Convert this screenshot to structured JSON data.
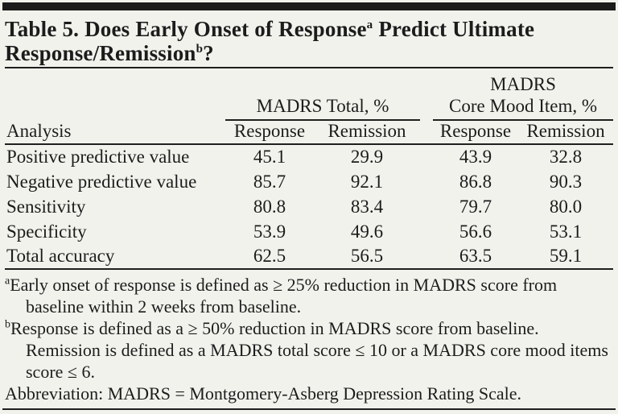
{
  "page": {
    "background_color": "#f2f2ed",
    "text_color": "#1c1c1c",
    "rule_color": "#1f1f1f"
  },
  "title": {
    "line1_pre": "Table 5. Does Early Onset of Response",
    "line1_sup": "a",
    "line1_post": " Predict Ultimate",
    "line2_pre": "Response/Remission",
    "line2_sup": "b",
    "line2_post": "?"
  },
  "table": {
    "row_header": "Analysis",
    "group1": {
      "label": "MADRS Total, %"
    },
    "group2": {
      "top": "MADRS",
      "label": "Core Mood Item, %"
    },
    "sub_headers": [
      "Response",
      "Remission",
      "Response",
      "Remission"
    ],
    "rows": [
      {
        "label": "Positive predictive value",
        "values": [
          "45.1",
          "29.9",
          "43.9",
          "32.8"
        ]
      },
      {
        "label": "Negative predictive value",
        "values": [
          "85.7",
          "92.1",
          "86.8",
          "90.3"
        ]
      },
      {
        "label": "Sensitivity",
        "values": [
          "80.8",
          "83.4",
          "79.7",
          "80.0"
        ]
      },
      {
        "label": "Specificity",
        "values": [
          "53.9",
          "49.6",
          "56.6",
          "53.1"
        ]
      },
      {
        "label": "Total accuracy",
        "values": [
          "62.5",
          "56.5",
          "63.5",
          "59.1"
        ]
      }
    ]
  },
  "footnotes": [
    {
      "marker": "a",
      "text": "Early onset of response is defined as ≥ 25% reduction in MADRS score from baseline within 2 weeks from baseline."
    },
    {
      "marker": "b",
      "text": "Response is defined as a ≥ 50% reduction in MADRS score from baseline. Remission is defined as a MADRS total score ≤ 10 or a MADRS core mood items score ≤ 6."
    },
    {
      "marker": "",
      "text": "Abbreviation: MADRS = Montgomery-Asberg Depression Rating Scale."
    }
  ]
}
